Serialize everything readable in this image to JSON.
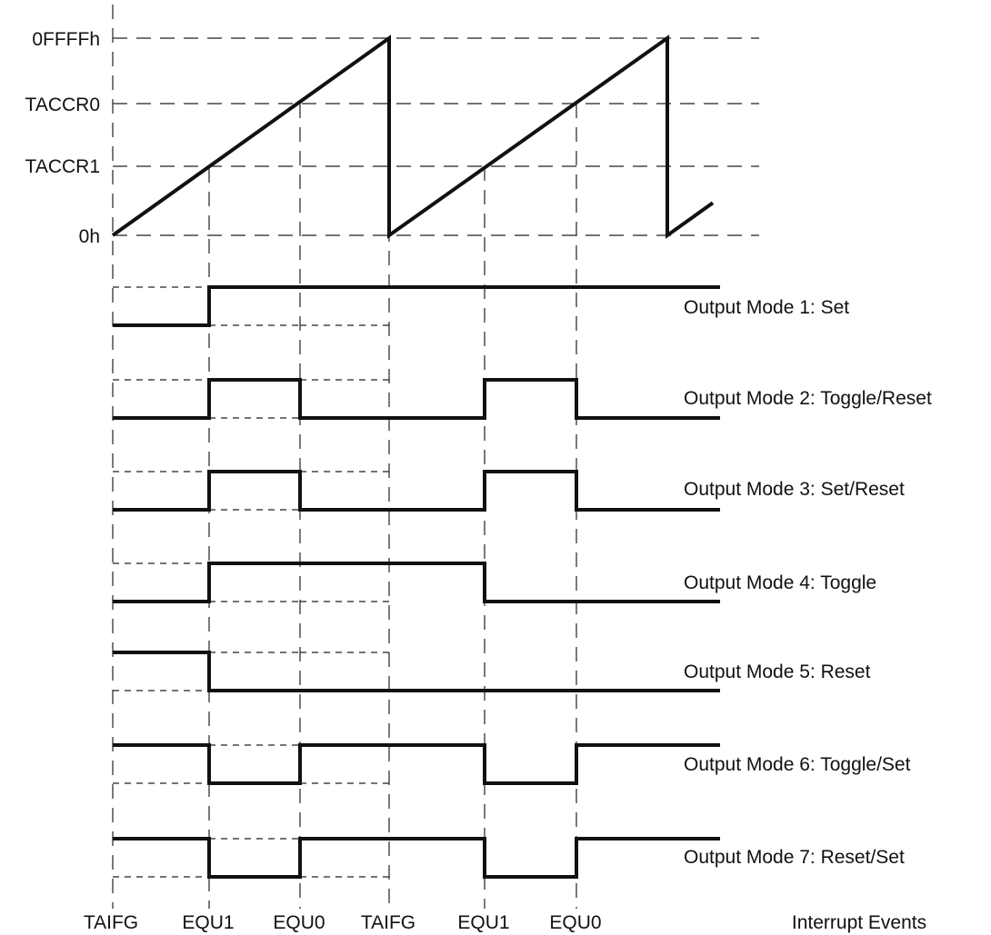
{
  "counter": {
    "levels": [
      {
        "id": "max",
        "label": "0FFFFh"
      },
      {
        "id": "taccr0",
        "label": "TACCR0"
      },
      {
        "id": "taccr1",
        "label": "TACCR1"
      },
      {
        "id": "zero",
        "label": "0h"
      }
    ]
  },
  "events": {
    "labels": [
      "TAIFG",
      "EQU1",
      "EQU0",
      "TAIFG",
      "EQU1",
      "EQU0"
    ],
    "title": "Interrupt Events"
  },
  "modes": [
    {
      "label": "Output Mode 1: Set",
      "levels": [
        0,
        1,
        1,
        1,
        1,
        1,
        1
      ]
    },
    {
      "label": "Output Mode 2: Toggle/Reset",
      "levels": [
        0,
        1,
        0,
        0,
        1,
        0,
        0
      ]
    },
    {
      "label": "Output Mode 3: Set/Reset",
      "levels": [
        0,
        1,
        0,
        0,
        1,
        0,
        0
      ]
    },
    {
      "label": "Output Mode 4: Toggle",
      "levels": [
        0,
        1,
        1,
        1,
        0,
        0,
        0
      ]
    },
    {
      "label": "Output Mode 5: Reset",
      "levels": [
        1,
        0,
        0,
        0,
        0,
        0,
        0
      ]
    },
    {
      "label": "Output Mode 6: Toggle/Set",
      "levels": [
        1,
        0,
        1,
        1,
        0,
        1,
        1
      ]
    },
    {
      "label": "Output Mode 7: Reset/Set",
      "levels": [
        1,
        0,
        1,
        1,
        0,
        1,
        1
      ]
    }
  ]
}
